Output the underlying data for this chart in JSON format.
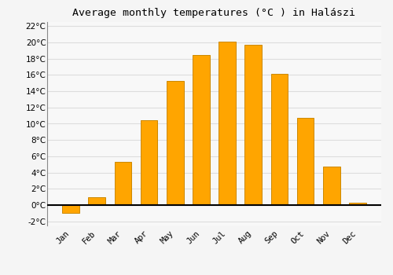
{
  "title": "Average monthly temperatures (°C ) in Halászi",
  "months": [
    "Jan",
    "Feb",
    "Mar",
    "Apr",
    "May",
    "Jun",
    "Jul",
    "Aug",
    "Sep",
    "Oct",
    "Nov",
    "Dec"
  ],
  "values": [
    -1.0,
    1.0,
    5.3,
    10.4,
    15.3,
    18.4,
    20.1,
    19.7,
    16.1,
    10.7,
    4.7,
    0.3
  ],
  "bar_color": "#FFA500",
  "bar_edge_color": "#CC8800",
  "ylim": [
    -2.5,
    22.5
  ],
  "yticks": [
    -2,
    0,
    2,
    4,
    6,
    8,
    10,
    12,
    14,
    16,
    18,
    20,
    22
  ],
  "background_color": "#f5f5f5",
  "plot_bg_color": "#f8f8f8",
  "grid_color": "#dddddd",
  "title_fontsize": 9.5,
  "tick_fontsize": 7.5,
  "figsize": [
    5.0,
    3.5
  ],
  "dpi": 100
}
